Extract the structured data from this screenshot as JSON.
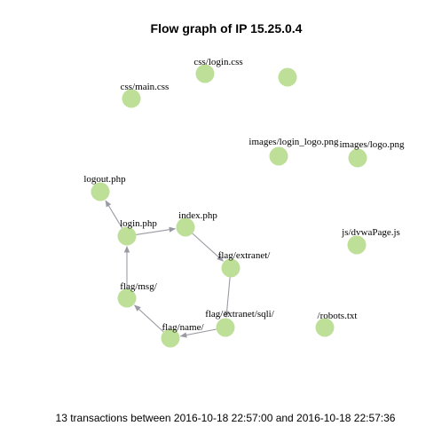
{
  "title": "Flow graph of IP 15.25.0.4",
  "caption": "13 transactions between 2016-10-18 22:57:00 and 2016-10-18 22:57:36",
  "colors": {
    "node": "#bedf98",
    "edge": "#9a9aa4",
    "text": "#000000",
    "background": "#ffffff"
  },
  "nodes": [
    {
      "id": "css-login",
      "label": "css/login.css"
    },
    {
      "id": "unlabeled",
      "label": ""
    },
    {
      "id": "css-main",
      "label": "css/main.css"
    },
    {
      "id": "images-login-logo",
      "label": "images/login_logo.png"
    },
    {
      "id": "images-logo",
      "label": "images/logo.png"
    },
    {
      "id": "logout",
      "label": "logout.php"
    },
    {
      "id": "index",
      "label": "index.php"
    },
    {
      "id": "login",
      "label": "login.php"
    },
    {
      "id": "dvwa-js",
      "label": "js/dvwaPage.js"
    },
    {
      "id": "flag-extranet",
      "label": "flag/extranet/"
    },
    {
      "id": "flag-msg",
      "label": "flag/msg/"
    },
    {
      "id": "flag-extranet-sqli",
      "label": "flag/extranet/sqli/"
    },
    {
      "id": "robots",
      "label": "/robots.txt"
    },
    {
      "id": "flag-name",
      "label": "flag/name/"
    }
  ],
  "edges": [
    {
      "from": "login",
      "to": "logout"
    },
    {
      "from": "login",
      "to": "index"
    },
    {
      "from": "index",
      "to": "flag-extranet"
    },
    {
      "from": "flag-extranet",
      "to": "flag-extranet-sqli"
    },
    {
      "from": "flag-extranet-sqli",
      "to": "flag-name"
    },
    {
      "from": "flag-name",
      "to": "flag-msg"
    },
    {
      "from": "flag-msg",
      "to": "login"
    }
  ]
}
